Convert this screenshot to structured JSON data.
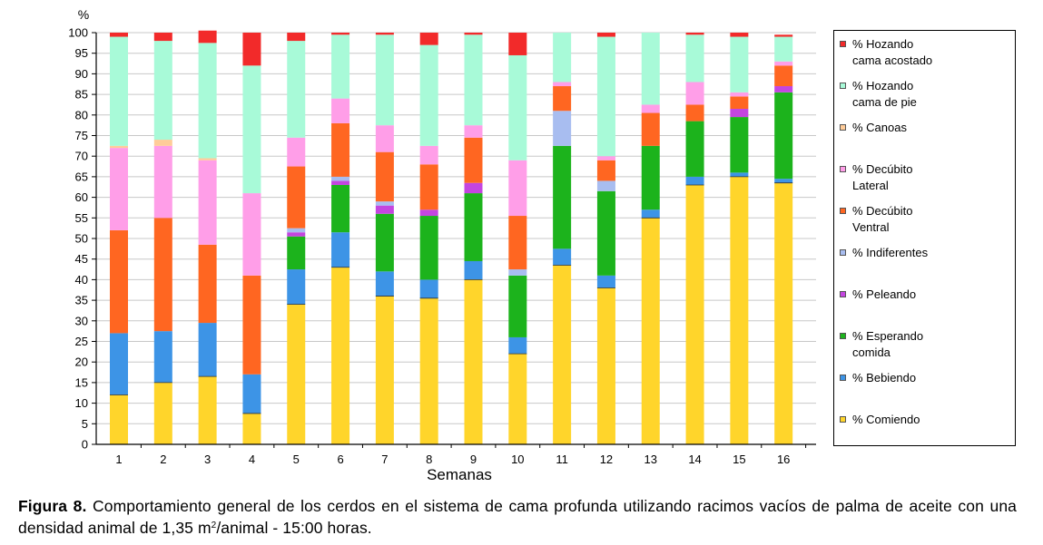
{
  "chart_data": {
    "type": "bar",
    "stacked": true,
    "ylabel": "%",
    "xlabel": "Semanas",
    "ylim": [
      0,
      100
    ],
    "yticks": [
      0,
      5,
      10,
      15,
      20,
      25,
      30,
      35,
      40,
      45,
      50,
      55,
      60,
      65,
      70,
      75,
      80,
      85,
      90,
      95,
      100
    ],
    "grid": true,
    "legend_position": "right",
    "categories": [
      "1",
      "2",
      "3",
      "4",
      "5",
      "6",
      "7",
      "8",
      "9",
      "10",
      "11",
      "12",
      "13",
      "14",
      "15",
      "16"
    ],
    "series": [
      {
        "name": "% Comiendo",
        "color": "#FFD52B",
        "values": [
          12,
          15,
          16.5,
          7.5,
          34,
          43,
          36,
          35.5,
          40,
          22,
          43.5,
          38,
          55,
          63,
          65,
          63.5
        ]
      },
      {
        "name": "% Bebiendo",
        "color": "#3D94E6",
        "values": [
          15,
          12.5,
          13,
          9.5,
          8.5,
          8.5,
          6,
          4.5,
          4.5,
          4,
          4,
          3,
          2,
          2,
          1,
          1
        ]
      },
      {
        "name": "% Esperando\ncomida",
        "color": "#1CB31C",
        "values": [
          0,
          0,
          0,
          0,
          8,
          11.5,
          14,
          15.5,
          16.5,
          15,
          25,
          20.5,
          15.5,
          13.5,
          13.5,
          21
        ]
      },
      {
        "name": "% Peleando",
        "color": "#C445E0",
        "values": [
          0,
          0,
          0,
          0,
          1,
          1,
          2,
          1.5,
          2.5,
          0,
          0,
          0,
          0,
          0,
          2,
          1.5
        ]
      },
      {
        "name": "% Indiferentes",
        "color": "#A8BDF0",
        "values": [
          0,
          0,
          0,
          0,
          1,
          1,
          1,
          0,
          0,
          1.5,
          8.5,
          2.5,
          0,
          0,
          0,
          0
        ]
      },
      {
        "name": "% Decúbito\nVentral",
        "color": "#FF6621",
        "values": [
          25,
          27.5,
          19,
          24,
          15,
          13,
          12,
          11,
          11,
          13,
          6,
          5,
          8,
          4,
          3,
          5
        ]
      },
      {
        "name": "% Decúbito\nLateral",
        "color": "#FF9EE8",
        "values": [
          20,
          17.5,
          20.5,
          20,
          7,
          6,
          6.5,
          4.5,
          3,
          13.5,
          1,
          1,
          2,
          5.5,
          1,
          1
        ]
      },
      {
        "name": "% Canoas",
        "color": "#FFCC99",
        "values": [
          0.5,
          1.5,
          0.5,
          0,
          0,
          0,
          0,
          0,
          0,
          0,
          0,
          0,
          0,
          0,
          0,
          0
        ]
      },
      {
        "name": "% Hozando\ncama de pie",
        "color": "#A8FAD8",
        "values": [
          26.5,
          24,
          28,
          31,
          23.5,
          15.5,
          22,
          24.5,
          22,
          25.5,
          12,
          29,
          17.5,
          11.5,
          13.5,
          6
        ]
      },
      {
        "name": "% Hozando\ncama acostado",
        "color": "#F22A2A",
        "values": [
          1,
          2,
          3,
          8,
          2,
          0.5,
          0.5,
          3,
          0.5,
          5.5,
          0,
          1,
          0,
          0.5,
          1,
          0.5
        ]
      }
    ]
  },
  "legend_order": [
    9,
    8,
    7,
    6,
    5,
    4,
    3,
    2,
    1,
    0
  ],
  "caption": {
    "label": "Figura 8.",
    "text_before_sup": " Comportamiento general de los cerdos en el sistema de cama profunda utilizando racimos vacíos de palma de aceite con una densidad animal de 1,35 m",
    "sup": "2",
    "text_after_sup": "/animal - 15:00 horas."
  }
}
